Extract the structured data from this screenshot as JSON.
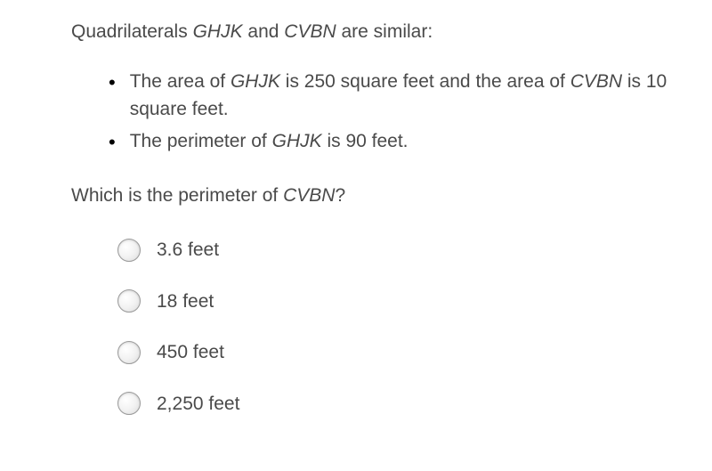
{
  "colors": {
    "text": "#4a4a4a",
    "bullet": "#000000",
    "radio_border": "#9a9a9a",
    "background": "#ffffff"
  },
  "typography": {
    "base_fontsize": 21,
    "line_height": 1.5,
    "font_family": "-apple-system, Helvetica Neue, Arial"
  },
  "intro": {
    "pre": "Quadrilaterals ",
    "term1": "GHJK",
    "mid": " and ",
    "term2": "CVBN",
    "post": " are similar:"
  },
  "bullets": [
    {
      "parts": {
        "t1": "The area of ",
        "i1": "GHJK",
        "t2": " is 250 square feet and the area of ",
        "i2": "CVBN",
        "t3": " is 10 square feet."
      }
    },
    {
      "parts": {
        "t1": "The perimeter of ",
        "i1": "GHJK",
        "t2": " is 90 feet.",
        "i2": "",
        "t3": ""
      }
    }
  ],
  "prompt": {
    "pre": "Which is the perimeter of ",
    "term": "CVBN",
    "post": "?"
  },
  "options": [
    {
      "label": "3.6 feet"
    },
    {
      "label": "18 feet"
    },
    {
      "label": "450 feet"
    },
    {
      "label": "2,250 feet"
    }
  ]
}
